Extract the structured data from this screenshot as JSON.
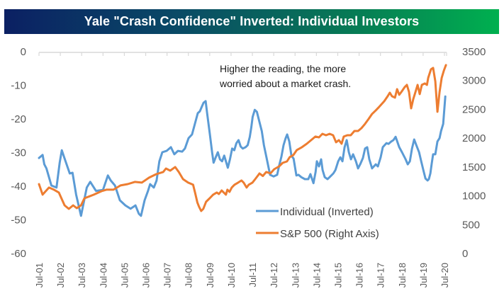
{
  "chart_data": {
    "type": "line",
    "title": "Yale \"Crash Confidence\" Inverted: Individual Investors",
    "annotation": [
      "Higher the reading, the more",
      "worried about a market crash."
    ],
    "xlabel": "",
    "ylabel_left": "",
    "ylabel_right": "",
    "x_ticks": [
      "Jul-01",
      "Jul-02",
      "Jul-03",
      "Jul-04",
      "Jul-05",
      "Jul-06",
      "Jul-07",
      "Jul-08",
      "Jul-09",
      "Jul-10",
      "Jul-11",
      "Jul-12",
      "Jul-13",
      "Jul-14",
      "Jul-15",
      "Jul-16",
      "Jul-17",
      "Jul-18",
      "Jul-19",
      "Jul-20"
    ],
    "x_range": [
      2001.5,
      2020.5
    ],
    "y_left": {
      "range": [
        -60,
        0
      ],
      "ticks": [
        "0",
        "-10",
        "-20",
        "-30",
        "-40",
        "-50",
        "-60"
      ],
      "tick_values": [
        0,
        -10,
        -20,
        -30,
        -40,
        -50,
        -60
      ]
    },
    "y_right": {
      "range": [
        0,
        3500
      ],
      "ticks": [
        "3500",
        "3000",
        "2500",
        "2000",
        "1500",
        "1000",
        "500",
        "0"
      ],
      "tick_values": [
        3500,
        3000,
        2500,
        2000,
        1500,
        1000,
        500,
        0
      ]
    },
    "grid": false,
    "legend": {
      "placement": "bottom-center",
      "entries": [
        {
          "name": "Individual (Inverted)",
          "color": "#5b9bd5"
        },
        {
          "name": "S&P 500 (Right Axis)",
          "color": "#ed7d31"
        }
      ]
    },
    "series": [
      {
        "name": "Individual (Inverted)",
        "axis": "left",
        "color": "#5b9bd5",
        "points": [
          [
            2001.5,
            -31.6
          ],
          [
            2001.67,
            -30.7
          ],
          [
            2001.75,
            -33.5
          ],
          [
            2001.85,
            -34.7
          ],
          [
            2002.08,
            -39.8
          ],
          [
            2002.32,
            -40.4
          ],
          [
            2002.47,
            -33.0
          ],
          [
            2002.57,
            -29.3
          ],
          [
            2002.67,
            -31.2
          ],
          [
            2002.94,
            -36.2
          ],
          [
            2003.07,
            -36.0
          ],
          [
            2003.24,
            -42.5
          ],
          [
            2003.47,
            -48.8
          ],
          [
            2003.74,
            -40.4
          ],
          [
            2003.9,
            -38.7
          ],
          [
            2004.17,
            -41.4
          ],
          [
            2004.5,
            -41.1
          ],
          [
            2004.73,
            -36.8
          ],
          [
            2004.86,
            -38.3
          ],
          [
            2005.06,
            -39.8
          ],
          [
            2005.29,
            -44.2
          ],
          [
            2005.55,
            -45.7
          ],
          [
            2005.79,
            -46.7
          ],
          [
            2006.02,
            -45.7
          ],
          [
            2006.18,
            -48.2
          ],
          [
            2006.28,
            -48.8
          ],
          [
            2006.45,
            -44.2
          ],
          [
            2006.61,
            -41.4
          ],
          [
            2006.71,
            -39.4
          ],
          [
            2006.88,
            -40.4
          ],
          [
            2007.01,
            -38.3
          ],
          [
            2007.14,
            -32.6
          ],
          [
            2007.28,
            -29.9
          ],
          [
            2007.48,
            -29.5
          ],
          [
            2007.68,
            -28.4
          ],
          [
            2007.84,
            -30.5
          ],
          [
            2008.01,
            -29.5
          ],
          [
            2008.21,
            -29.7
          ],
          [
            2008.34,
            -28.8
          ],
          [
            2008.51,
            -25.7
          ],
          [
            2008.67,
            -24.6
          ],
          [
            2008.94,
            -18.3
          ],
          [
            2009.04,
            -17.7
          ],
          [
            2009.14,
            -16.2
          ],
          [
            2009.21,
            -15.2
          ],
          [
            2009.31,
            -14.7
          ],
          [
            2009.38,
            -18.3
          ],
          [
            2009.51,
            -24.6
          ],
          [
            2009.61,
            -29.9
          ],
          [
            2009.68,
            -33.0
          ],
          [
            2009.78,
            -31.4
          ],
          [
            2009.88,
            -29.9
          ],
          [
            2009.98,
            -32.0
          ],
          [
            2010.08,
            -32.6
          ],
          [
            2010.18,
            -30.9
          ],
          [
            2010.28,
            -33.0
          ],
          [
            2010.35,
            -34.5
          ],
          [
            2010.45,
            -32.0
          ],
          [
            2010.55,
            -28.8
          ],
          [
            2010.65,
            -29.3
          ],
          [
            2010.75,
            -27.2
          ],
          [
            2010.85,
            -26.3
          ],
          [
            2010.95,
            -28.2
          ],
          [
            2011.05,
            -28.8
          ],
          [
            2011.18,
            -28.4
          ],
          [
            2011.28,
            -27.8
          ],
          [
            2011.38,
            -25.3
          ],
          [
            2011.45,
            -22.5
          ],
          [
            2011.51,
            -19.4
          ],
          [
            2011.61,
            -17.3
          ],
          [
            2011.71,
            -17.9
          ],
          [
            2011.81,
            -20.4
          ],
          [
            2011.94,
            -23.6
          ],
          [
            2012.04,
            -27.8
          ],
          [
            2012.16,
            -31.4
          ],
          [
            2012.33,
            -36.6
          ],
          [
            2012.49,
            -37.1
          ],
          [
            2012.66,
            -36.6
          ],
          [
            2012.76,
            -33.7
          ],
          [
            2012.86,
            -31.2
          ],
          [
            2012.96,
            -27.8
          ],
          [
            2013.06,
            -25.7
          ],
          [
            2013.13,
            -24.6
          ],
          [
            2013.23,
            -26.7
          ],
          [
            2013.33,
            -30.9
          ],
          [
            2013.43,
            -31.8
          ],
          [
            2013.56,
            -36.8
          ],
          [
            2013.66,
            -36.6
          ],
          [
            2013.79,
            -37.3
          ],
          [
            2013.96,
            -37.9
          ],
          [
            2014.12,
            -37.9
          ],
          [
            2014.22,
            -36.4
          ],
          [
            2014.36,
            -39.1
          ],
          [
            2014.46,
            -35.8
          ],
          [
            2014.52,
            -32.6
          ],
          [
            2014.62,
            -34.1
          ],
          [
            2014.72,
            -32.0
          ],
          [
            2014.79,
            -35.2
          ],
          [
            2014.89,
            -37.3
          ],
          [
            2015.02,
            -37.9
          ],
          [
            2015.12,
            -37.3
          ],
          [
            2015.29,
            -36.2
          ],
          [
            2015.39,
            -35.2
          ],
          [
            2015.52,
            -32.6
          ],
          [
            2015.62,
            -31.4
          ],
          [
            2015.72,
            -32.6
          ],
          [
            2015.82,
            -28.4
          ],
          [
            2015.92,
            -26.3
          ],
          [
            2016.02,
            -29.9
          ],
          [
            2016.12,
            -32.0
          ],
          [
            2016.22,
            -30.5
          ],
          [
            2016.35,
            -32.6
          ],
          [
            2016.45,
            -34.7
          ],
          [
            2016.55,
            -33.5
          ],
          [
            2016.68,
            -31.6
          ],
          [
            2016.78,
            -28.8
          ],
          [
            2016.88,
            -28.4
          ],
          [
            2016.98,
            -32.0
          ],
          [
            2017.11,
            -34.7
          ],
          [
            2017.28,
            -33.5
          ],
          [
            2017.38,
            -34.1
          ],
          [
            2017.51,
            -31.4
          ],
          [
            2017.61,
            -28.4
          ],
          [
            2017.78,
            -27.2
          ],
          [
            2017.88,
            -27.4
          ],
          [
            2018.01,
            -26.7
          ],
          [
            2018.11,
            -26.3
          ],
          [
            2018.21,
            -25.3
          ],
          [
            2018.38,
            -28.4
          ],
          [
            2018.51,
            -29.9
          ],
          [
            2018.68,
            -32.0
          ],
          [
            2018.78,
            -33.5
          ],
          [
            2018.88,
            -32.6
          ],
          [
            2018.98,
            -28.8
          ],
          [
            2019.08,
            -26.1
          ],
          [
            2019.18,
            -27.8
          ],
          [
            2019.31,
            -29.9
          ],
          [
            2019.41,
            -32.6
          ],
          [
            2019.51,
            -35.2
          ],
          [
            2019.61,
            -37.7
          ],
          [
            2019.71,
            -38.3
          ],
          [
            2019.77,
            -37.9
          ],
          [
            2019.84,
            -36.2
          ],
          [
            2019.91,
            -33.0
          ],
          [
            2019.97,
            -30.5
          ],
          [
            2020.07,
            -30.5
          ],
          [
            2020.17,
            -26.7
          ],
          [
            2020.27,
            -25.7
          ],
          [
            2020.34,
            -23.6
          ],
          [
            2020.44,
            -21.5
          ],
          [
            2020.54,
            -13.3
          ]
        ]
      },
      {
        "name": "S&P 500 (Right Axis)",
        "axis": "right",
        "color": "#ed7d31",
        "points": [
          [
            2001.5,
            1204
          ],
          [
            2001.67,
            1020
          ],
          [
            2001.97,
            1143
          ],
          [
            2002.2,
            1106
          ],
          [
            2002.43,
            1057
          ],
          [
            2002.7,
            835
          ],
          [
            2002.9,
            774
          ],
          [
            2003.1,
            835
          ],
          [
            2003.27,
            786
          ],
          [
            2003.47,
            835
          ],
          [
            2003.63,
            958
          ],
          [
            2004.07,
            1020
          ],
          [
            2004.43,
            1081
          ],
          [
            2004.66,
            1106
          ],
          [
            2004.99,
            1106
          ],
          [
            2005.32,
            1180
          ],
          [
            2005.66,
            1204
          ],
          [
            2005.99,
            1241
          ],
          [
            2006.32,
            1229
          ],
          [
            2006.66,
            1315
          ],
          [
            2006.99,
            1376
          ],
          [
            2007.32,
            1413
          ],
          [
            2007.45,
            1474
          ],
          [
            2007.65,
            1437
          ],
          [
            2007.88,
            1499
          ],
          [
            2008.05,
            1413
          ],
          [
            2008.25,
            1290
          ],
          [
            2008.49,
            1229
          ],
          [
            2008.72,
            1192
          ],
          [
            2008.82,
            1044
          ],
          [
            2008.92,
            885
          ],
          [
            2009.0,
            811
          ],
          [
            2009.1,
            737
          ],
          [
            2009.2,
            774
          ],
          [
            2009.33,
            897
          ],
          [
            2009.5,
            958
          ],
          [
            2009.66,
            1020
          ],
          [
            2009.83,
            1057
          ],
          [
            2009.93,
            1032
          ],
          [
            2010.06,
            1093
          ],
          [
            2010.16,
            1057
          ],
          [
            2010.26,
            1020
          ],
          [
            2010.33,
            1106
          ],
          [
            2010.43,
            1069
          ],
          [
            2010.53,
            1143
          ],
          [
            2010.66,
            1192
          ],
          [
            2010.83,
            1229
          ],
          [
            2010.99,
            1266
          ],
          [
            2011.09,
            1229
          ],
          [
            2011.23,
            1143
          ],
          [
            2011.33,
            1192
          ],
          [
            2011.5,
            1229
          ],
          [
            2011.63,
            1290
          ],
          [
            2011.76,
            1352
          ],
          [
            2011.83,
            1388
          ],
          [
            2011.99,
            1345
          ],
          [
            2012.15,
            1413
          ],
          [
            2012.35,
            1390
          ],
          [
            2012.52,
            1462
          ],
          [
            2012.75,
            1511
          ],
          [
            2012.92,
            1572
          ],
          [
            2013.12,
            1597
          ],
          [
            2013.25,
            1671
          ],
          [
            2013.42,
            1708
          ],
          [
            2013.58,
            1794
          ],
          [
            2013.82,
            1843
          ],
          [
            2014.05,
            1904
          ],
          [
            2014.21,
            1953
          ],
          [
            2014.45,
            2027
          ],
          [
            2014.62,
            2014
          ],
          [
            2014.78,
            2076
          ],
          [
            2014.95,
            2051
          ],
          [
            2015.12,
            2076
          ],
          [
            2015.28,
            2051
          ],
          [
            2015.42,
            1929
          ],
          [
            2015.55,
            1966
          ],
          [
            2015.68,
            1904
          ],
          [
            2015.78,
            2027
          ],
          [
            2015.95,
            2051
          ],
          [
            2016.11,
            2051
          ],
          [
            2016.28,
            2125
          ],
          [
            2016.45,
            2125
          ],
          [
            2016.61,
            2174
          ],
          [
            2016.78,
            2248
          ],
          [
            2016.95,
            2334
          ],
          [
            2017.11,
            2420
          ],
          [
            2017.28,
            2482
          ],
          [
            2017.44,
            2543
          ],
          [
            2017.68,
            2641
          ],
          [
            2017.84,
            2727
          ],
          [
            2017.94,
            2789
          ],
          [
            2018.04,
            2727
          ],
          [
            2018.18,
            2703
          ],
          [
            2018.28,
            2850
          ],
          [
            2018.38,
            2752
          ],
          [
            2018.48,
            2801
          ],
          [
            2018.64,
            2887
          ],
          [
            2018.74,
            2924
          ],
          [
            2018.84,
            2801
          ],
          [
            2018.94,
            2518
          ],
          [
            2019.04,
            2678
          ],
          [
            2019.14,
            2801
          ],
          [
            2019.24,
            2924
          ],
          [
            2019.34,
            2764
          ],
          [
            2019.44,
            2924
          ],
          [
            2019.58,
            2949
          ],
          [
            2019.68,
            2924
          ],
          [
            2019.74,
            3047
          ],
          [
            2019.87,
            3194
          ],
          [
            2019.97,
            3219
          ],
          [
            2020.07,
            2985
          ],
          [
            2020.17,
            2457
          ],
          [
            2020.27,
            2801
          ],
          [
            2020.37,
            3047
          ],
          [
            2020.47,
            3170
          ],
          [
            2020.57,
            3268
          ]
        ]
      }
    ]
  }
}
